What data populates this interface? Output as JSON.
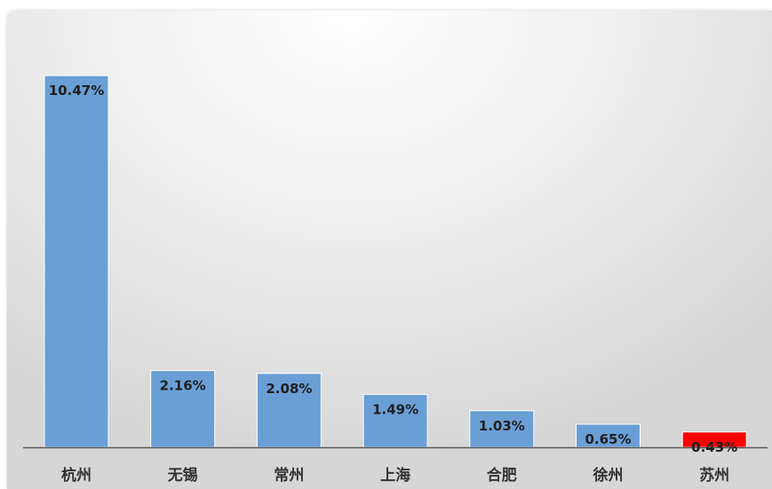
{
  "chart_data": {
    "type": "bar",
    "title": "",
    "xlabel": "",
    "ylabel": "",
    "ylim": [
      0,
      11.6
    ],
    "grid": false,
    "legend": "none",
    "categories": [
      "杭州",
      "无锡",
      "常州",
      "上海",
      "合肥",
      "徐州",
      "苏州"
    ],
    "values": [
      10.47,
      2.16,
      2.08,
      1.49,
      1.03,
      0.65,
      0.43
    ],
    "data_labels": [
      "10.47%",
      "2.16%",
      "2.08%",
      "1.49%",
      "1.03%",
      "0.65%",
      "0.43%"
    ],
    "bar_colors": [
      "#6a9fd6",
      "#6a9fd6",
      "#6a9fd6",
      "#6a9fd6",
      "#6a9fd6",
      "#6a9fd6",
      "#ff0000"
    ],
    "axis_color": "#595959"
  }
}
